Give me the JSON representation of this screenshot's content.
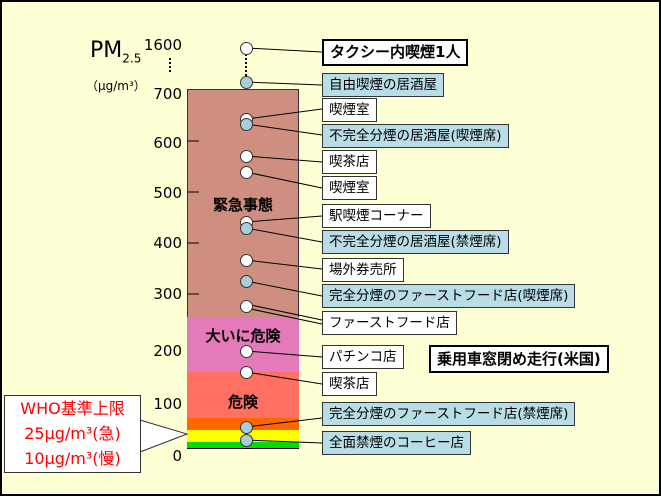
{
  "axis": {
    "title": "PM",
    "subscript": "2.5",
    "unit": "（μg/m³）",
    "ticks": [
      "1600",
      "700",
      "600",
      "500",
      "400",
      "300",
      "200",
      "100",
      "0"
    ]
  },
  "zones": [
    "緊急事態",
    "大いに危険",
    "危険"
  ],
  "who": {
    "line1": "WHO基準上限",
    "line2": "25μg/m³(急)",
    "line3": "10μg/m³(慢)"
  },
  "labels": [
    {
      "text": "タクシー内喫煙1人",
      "type": "strong"
    },
    {
      "text": "自由喫煙の居酒屋",
      "type": "blue"
    },
    {
      "text": "喫煙室",
      "type": "white"
    },
    {
      "text": "不完全分煙の居酒屋(喫煙席)",
      "type": "blue"
    },
    {
      "text": "喫茶店",
      "type": "white"
    },
    {
      "text": "喫煙室",
      "type": "white"
    },
    {
      "text": "駅喫煙コーナー",
      "type": "white"
    },
    {
      "text": "不完全分煙の居酒屋(禁煙席)",
      "type": "blue"
    },
    {
      "text": "場外券売所",
      "type": "white"
    },
    {
      "text": "完全分煙のファーストフード店(喫煙席)",
      "type": "blue"
    },
    {
      "text": "ファーストフード店",
      "type": "white"
    },
    {
      "text": "パチンコ店",
      "type": "white"
    },
    {
      "text": "喫茶店",
      "type": "white"
    },
    {
      "text": "完全分煙のファーストフード店(禁煙席)",
      "type": "blue"
    },
    {
      "text": "全面禁煙のコーヒー店",
      "type": "blue"
    }
  ],
  "car": "乗用車窓閉め走行(米国)"
}
